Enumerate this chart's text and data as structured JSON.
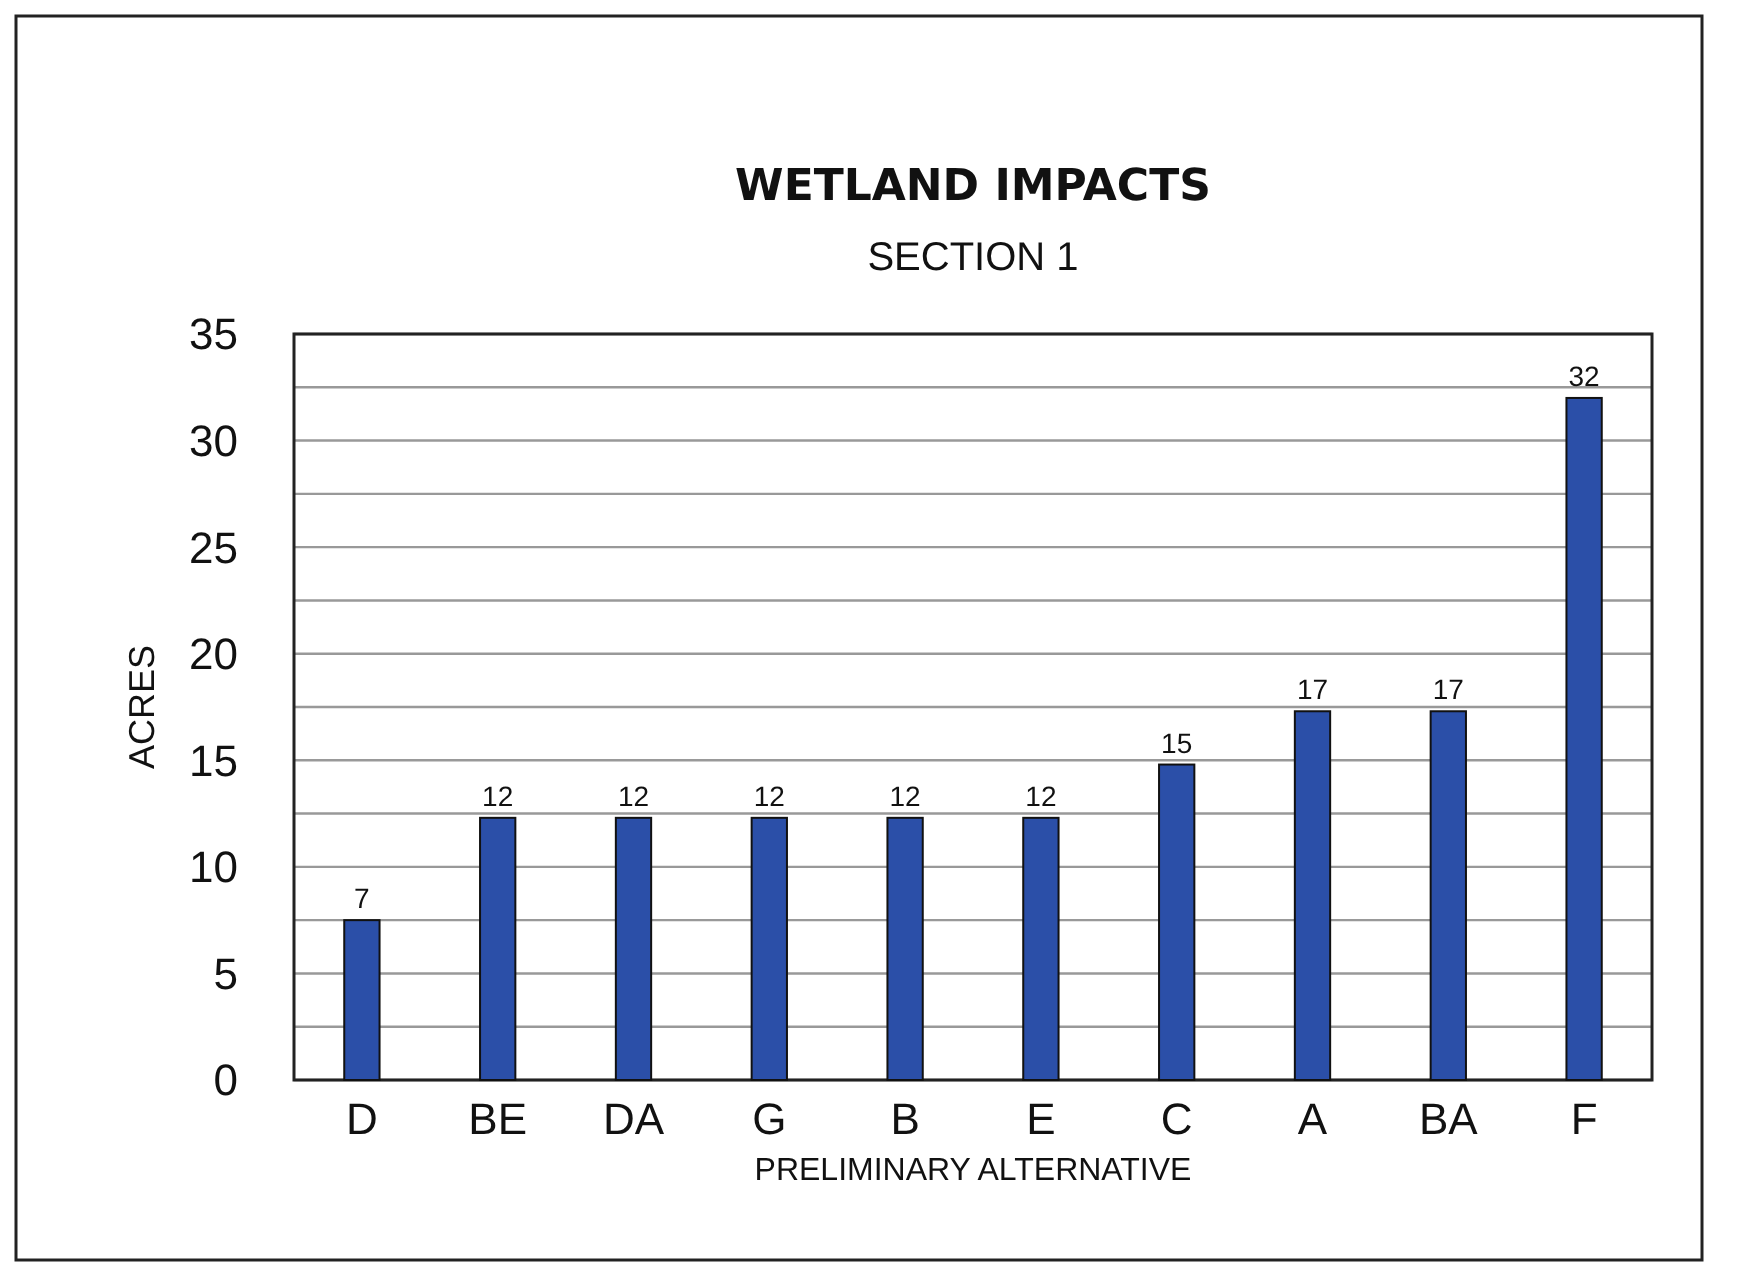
{
  "chart_data": {
    "type": "bar",
    "title": "WETLAND IMPACTS",
    "subtitle": "SECTION 1",
    "xlabel": "PRELIMINARY ALTERNATIVE",
    "ylabel": "ACRES",
    "categories": [
      "D",
      "BE",
      "DA",
      "G",
      "B",
      "E",
      "C",
      "A",
      "BA",
      "F"
    ],
    "values": [
      7.5,
      12.3,
      12.3,
      12.3,
      12.3,
      12.3,
      14.8,
      17.3,
      17.3,
      32
    ],
    "value_labels": [
      "7",
      "12",
      "12",
      "12",
      "12",
      "12",
      "15",
      "17",
      "17",
      "32"
    ],
    "color": "#2b4fa8",
    "ylim": [
      0,
      35
    ],
    "yticks": [
      0,
      {
        "value": 2.5,
        "label": null
      },
      5,
      {
        "value": 7.5,
        "label": null
      },
      10,
      {
        "value": 12.5,
        "label": null
      },
      15,
      {
        "value": 17.5,
        "label": null
      },
      20,
      {
        "value": 22.5,
        "label": null
      },
      25,
      {
        "value": 27.5,
        "label": null
      },
      30,
      {
        "value": 32.5,
        "label": null
      },
      35
    ],
    "grid": "y"
  }
}
